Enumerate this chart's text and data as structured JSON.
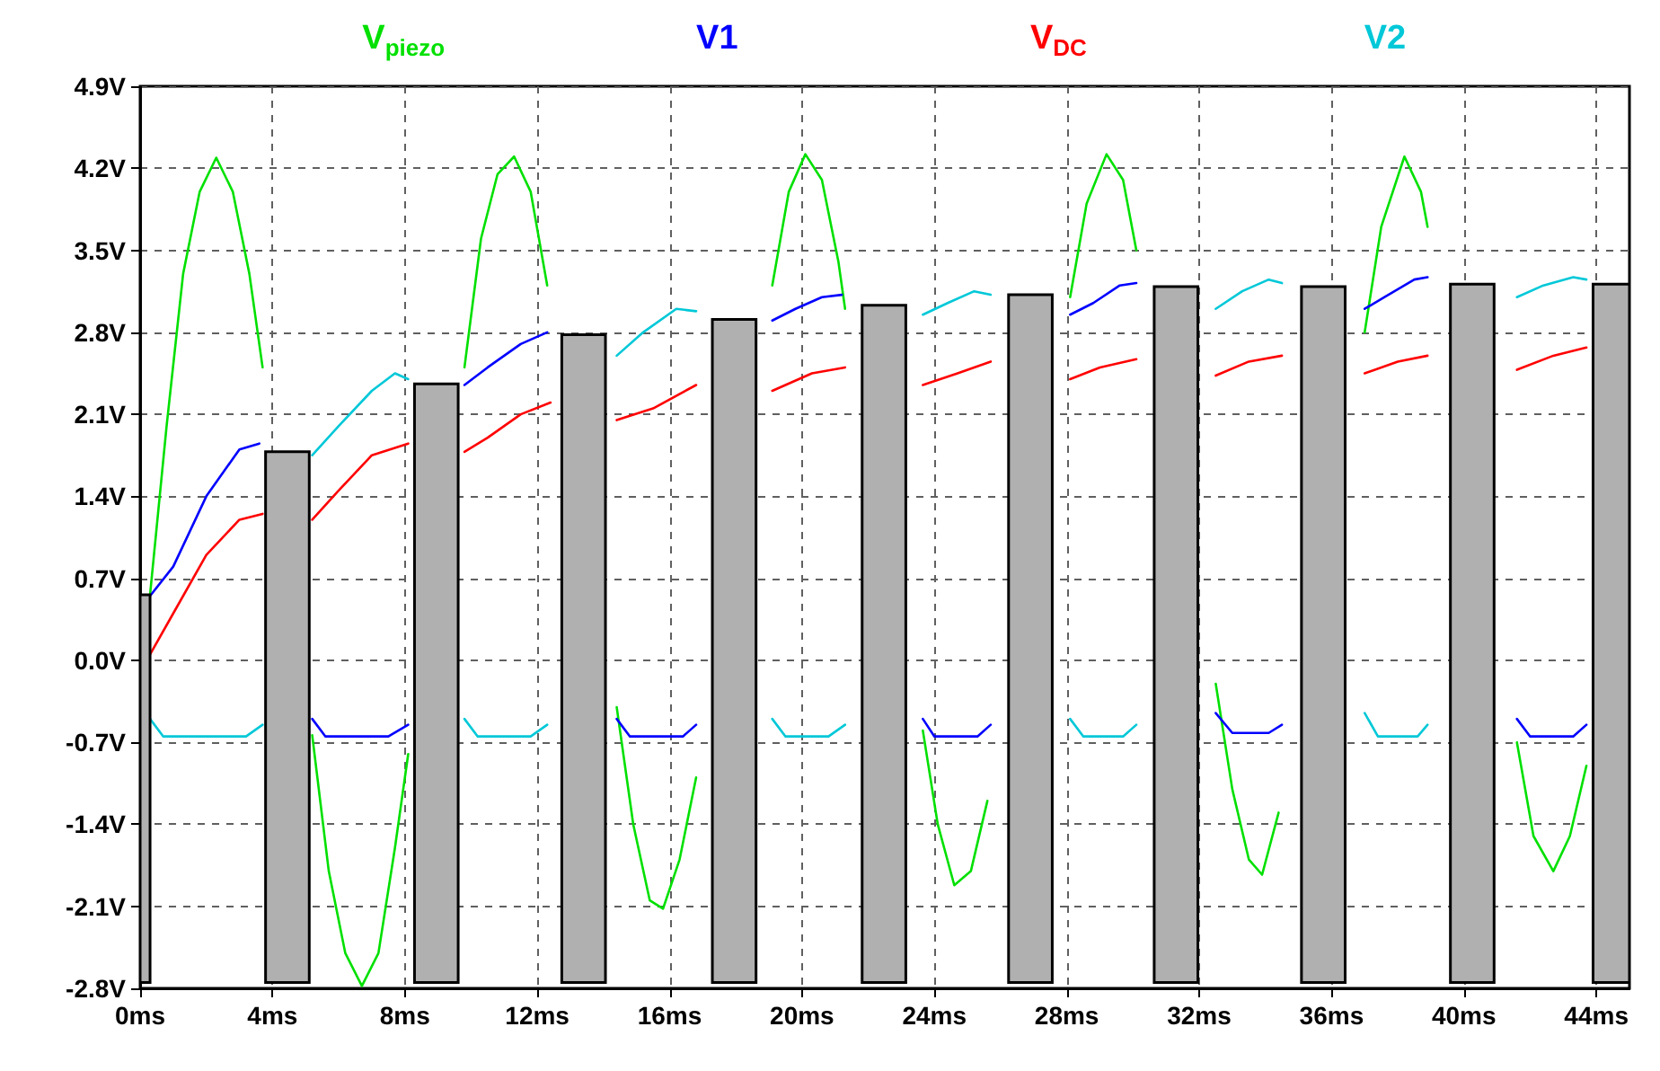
{
  "chart_data": {
    "type": "line",
    "legend": "top",
    "grid": true,
    "xlim": [
      0,
      45
    ],
    "xticks": [
      {
        "value": 0,
        "label": "0ms"
      },
      {
        "value": 4,
        "label": "4ms"
      },
      {
        "value": 8,
        "label": "8ms"
      },
      {
        "value": 12,
        "label": "12ms"
      },
      {
        "value": 16,
        "label": "16ms"
      },
      {
        "value": 20,
        "label": "20ms"
      },
      {
        "value": 24,
        "label": "24ms"
      },
      {
        "value": 28,
        "label": "28ms"
      },
      {
        "value": 32,
        "label": "32ms"
      },
      {
        "value": 36,
        "label": "36ms"
      },
      {
        "value": 40,
        "label": "40ms"
      },
      {
        "value": 44,
        "label": "44ms"
      }
    ],
    "ylim": [
      -2.8,
      4.9
    ],
    "yticks": [
      {
        "value": -2.8,
        "label": "-2.8V"
      },
      {
        "value": -2.1,
        "label": "-2.1V"
      },
      {
        "value": -1.4,
        "label": "-1.4V"
      },
      {
        "value": -0.7,
        "label": "-0.7V"
      },
      {
        "value": 0,
        "label": "0.0V"
      },
      {
        "value": 0.7,
        "label": "0.7V"
      },
      {
        "value": 1.4,
        "label": "1.4V"
      },
      {
        "value": 2.1,
        "label": "2.1V"
      },
      {
        "value": 2.8,
        "label": "2.8V"
      },
      {
        "value": 3.5,
        "label": "3.5V"
      },
      {
        "value": 4.2,
        "label": "4.2V"
      },
      {
        "value": 4.9,
        "label": "4.9V"
      }
    ],
    "series": [
      {
        "name": "V$_{piezo}$",
        "color": "#00e000",
        "x": [
          0.3,
          0.8,
          1.3,
          1.8,
          2.3,
          2.8,
          3.3,
          3.7,
          4.45,
          5.2,
          5.7,
          6.2,
          6.7,
          7.2,
          7.7,
          8.1,
          8.95,
          9.8,
          10.3,
          10.8,
          11.3,
          11.8,
          12.3,
          13.4,
          14.4,
          14.9,
          15.4,
          15.8,
          16.3,
          16.8,
          17.95,
          19.1,
          19.6,
          20.1,
          20.6,
          21.1,
          21.3,
          22.5,
          23.65,
          24.1,
          24.6,
          25.1,
          25.6,
          26.9,
          28.1,
          28.6,
          29.2,
          29.7,
          30.1,
          31.3,
          32.5,
          33.0,
          33.5,
          33.9,
          34.4,
          35.75,
          37.0,
          37.5,
          38.2,
          38.7,
          38.9,
          40.25,
          41.6,
          42.1,
          42.7,
          43.2,
          43.7
        ],
        "values": [
          0.56,
          2.0,
          3.3,
          4.0,
          4.29,
          4.0,
          3.3,
          2.5,
          null,
          -0.64,
          -1.8,
          -2.5,
          -2.78,
          -2.5,
          -1.6,
          -0.8,
          null,
          2.5,
          3.6,
          4.15,
          4.3,
          4.0,
          3.2,
          null,
          -0.4,
          -1.4,
          -2.05,
          -2.12,
          -1.7,
          -1.0,
          null,
          3.2,
          4.0,
          4.32,
          4.1,
          3.4,
          3.0,
          null,
          -0.6,
          -1.4,
          -1.92,
          -1.8,
          -1.2,
          null,
          3.1,
          3.9,
          4.32,
          4.1,
          3.5,
          null,
          -0.2,
          -1.1,
          -1.7,
          -1.83,
          -1.3,
          null,
          2.8,
          3.7,
          4.3,
          4.0,
          3.7,
          null,
          -0.7,
          -1.5,
          -1.8,
          -1.5,
          -0.9
        ]
      },
      {
        "name": "V1",
        "color": "#0000ff",
        "x": [
          0.3,
          1,
          2,
          3,
          3.6,
          4.45,
          5.2,
          5.6,
          7.5,
          8.1,
          8.95,
          9.8,
          10.5,
          11.5,
          12.3,
          13.4,
          14.4,
          14.8,
          16.4,
          16.8,
          17.95,
          19.1,
          19.8,
          20.6,
          21.2,
          22.5,
          23.65,
          24.0,
          25.3,
          25.7,
          26.9,
          28.1,
          28.8,
          29.6,
          30.1,
          31.3,
          32.5,
          33.0,
          34.1,
          34.5,
          35.75,
          37.0,
          37.6,
          38.5,
          38.9,
          40.25,
          41.6,
          42.0,
          43.3,
          43.7
        ],
        "values": [
          0.55,
          0.8,
          1.4,
          1.8,
          1.85,
          null,
          -0.5,
          -0.65,
          -0.65,
          -0.55,
          null,
          2.35,
          2.5,
          2.7,
          2.8,
          null,
          -0.5,
          -0.65,
          -0.65,
          -0.55,
          null,
          2.9,
          3.0,
          3.1,
          3.12,
          null,
          -0.5,
          -0.65,
          -0.65,
          -0.55,
          null,
          2.95,
          3.05,
          3.2,
          3.22,
          null,
          -0.45,
          -0.62,
          -0.62,
          -0.55,
          null,
          3.0,
          3.1,
          3.25,
          3.27,
          null,
          -0.5,
          -0.65,
          -0.65,
          -0.55
        ]
      },
      {
        "name": "V$_{DC}$",
        "color": "#ff0000",
        "x": [
          0.3,
          1,
          2,
          3,
          3.7,
          4.45,
          5.2,
          6,
          7,
          8.1,
          8.95,
          9.8,
          10.5,
          11.5,
          12.4,
          13.4,
          14.4,
          15.5,
          16.8,
          17.95,
          19.1,
          20.3,
          21.3,
          22.5,
          23.65,
          24.7,
          25.7,
          26.9,
          28.1,
          29,
          30.1,
          31.3,
          32.5,
          33.5,
          34.5,
          35.75,
          37,
          38,
          38.9,
          40.25,
          41.6,
          42.7,
          43.7
        ],
        "values": [
          0.05,
          0.4,
          0.9,
          1.2,
          1.25,
          null,
          1.2,
          1.45,
          1.75,
          1.85,
          null,
          1.78,
          1.9,
          2.1,
          2.2,
          null,
          2.05,
          2.15,
          2.35,
          null,
          2.3,
          2.45,
          2.5,
          null,
          2.35,
          2.45,
          2.55,
          null,
          2.4,
          2.5,
          2.57,
          null,
          2.43,
          2.55,
          2.6,
          null,
          2.45,
          2.55,
          2.6,
          null,
          2.48,
          2.6,
          2.67
        ]
      },
      {
        "name": "V2",
        "color": "#00c8d8",
        "x": [
          0.3,
          0.7,
          3.2,
          3.7,
          4.45,
          5.2,
          6,
          7,
          7.7,
          8.1,
          8.95,
          9.8,
          10.2,
          11.8,
          12.3,
          13.4,
          14.4,
          15.2,
          16.2,
          16.8,
          17.95,
          19.1,
          19.5,
          20.8,
          21.3,
          22.5,
          23.65,
          24.4,
          25.2,
          25.7,
          26.9,
          28.1,
          28.5,
          29.7,
          30.1,
          31.3,
          32.5,
          33.3,
          34.1,
          34.5,
          35.75,
          37.0,
          37.4,
          38.6,
          38.9,
          40.25,
          41.6,
          42.4,
          43.3,
          43.7
        ],
        "values": [
          -0.5,
          -0.65,
          -0.65,
          -0.55,
          null,
          1.75,
          2.0,
          2.3,
          2.45,
          2.4,
          null,
          -0.5,
          -0.65,
          -0.65,
          -0.55,
          null,
          2.6,
          2.8,
          3.0,
          2.98,
          null,
          -0.5,
          -0.65,
          -0.65,
          -0.55,
          null,
          2.95,
          3.05,
          3.15,
          3.12,
          null,
          -0.5,
          -0.65,
          -0.65,
          -0.55,
          null,
          3.0,
          3.15,
          3.25,
          3.22,
          null,
          -0.45,
          -0.65,
          -0.65,
          -0.55,
          null,
          3.1,
          3.2,
          3.27,
          3.25
        ]
      },
      {
        "type": "bar",
        "color": "#b0b0b0",
        "x": [
          0.15,
          4.45,
          8.95,
          13.4,
          17.95,
          22.475,
          26.9,
          31.3,
          35.75,
          40.25,
          44.45
        ],
        "base": [
          -2.75,
          -2.75,
          -2.75,
          -2.75,
          -2.75,
          -2.75,
          -2.75,
          -2.75,
          -2.75,
          -2.75,
          -2.75
        ],
        "values": [
          3.31,
          4.53,
          5.11,
          5.53,
          5.66,
          5.78,
          5.87,
          5.94,
          5.94,
          5.96,
          5.96
        ]
      }
    ]
  }
}
